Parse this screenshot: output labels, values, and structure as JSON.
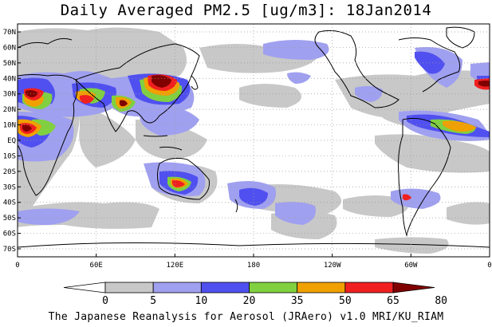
{
  "title": "Daily Averaged PM2.5 [ug/m3]: 18Jan2014",
  "footer": "The Japanese Reanalysis for Aerosol (JRAero) v1.0 MRI/KU_RIAM",
  "map": {
    "lat_labels": [
      "70N",
      "60N",
      "50N",
      "40N",
      "30N",
      "20N",
      "10N",
      "EQ",
      "10S",
      "20S",
      "30S",
      "40S",
      "50S",
      "60S",
      "70S"
    ],
    "lon_labels": [
      "0",
      "60E",
      "120E",
      "180",
      "120W",
      "60W",
      "0"
    ]
  },
  "colorbar": {
    "levels": [
      "0",
      "5",
      "10",
      "20",
      "35",
      "50",
      "65",
      "80"
    ],
    "colors": [
      "#ffffff",
      "#c8c8c8",
      "#a0a0f0",
      "#5050f0",
      "#80d040",
      "#f0a000",
      "#f02020",
      "#800000"
    ]
  }
}
